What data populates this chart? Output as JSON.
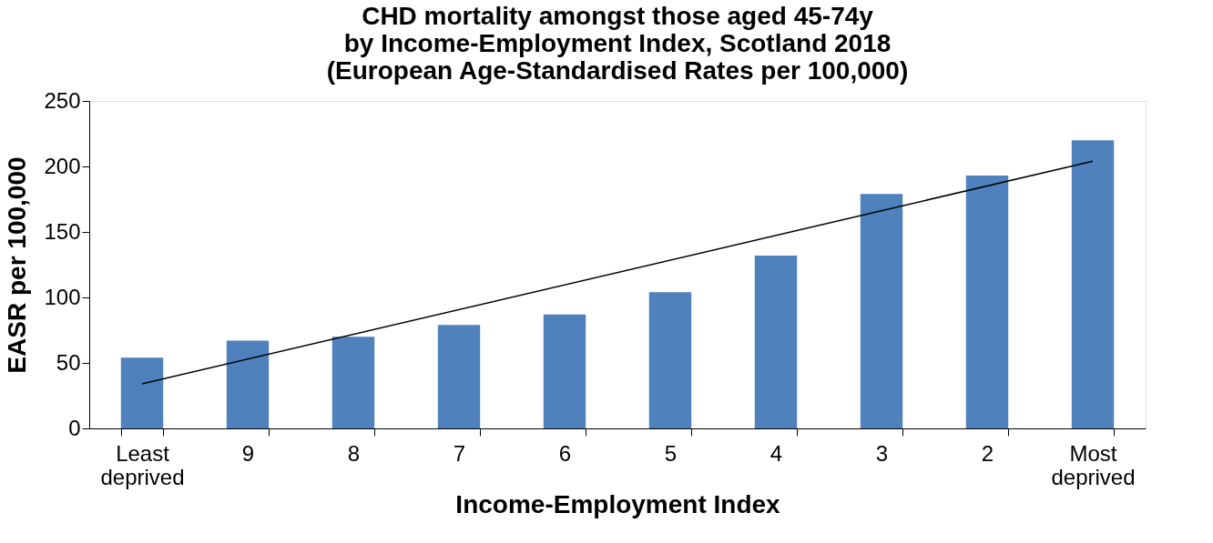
{
  "chart_data": {
    "type": "bar",
    "title": "CHD mortality amongst those aged 45-74y\nby Income-Employment Index, Scotland 2018\n(European Age-Standardised Rates per 100,000)",
    "xlabel": "Income-Employment Index",
    "ylabel": "EASR per 100,000",
    "categories": [
      "Least deprived",
      "9",
      "8",
      "7",
      "6",
      "5",
      "4",
      "3",
      "2",
      "Most deprived"
    ],
    "series": [
      {
        "color": "#4f81bd",
        "values": [
          54,
          67,
          70,
          79,
          87,
          104,
          132,
          179,
          193,
          220
        ]
      },
      {
        "type": "line",
        "color": "#000000",
        "x": [
          "Least deprived",
          "Most deprived"
        ],
        "values": [
          34,
          204
        ]
      }
    ],
    "ylim": [
      0,
      250
    ],
    "yticks": [
      0,
      50,
      100,
      150,
      200,
      250
    ],
    "grid": false
  }
}
